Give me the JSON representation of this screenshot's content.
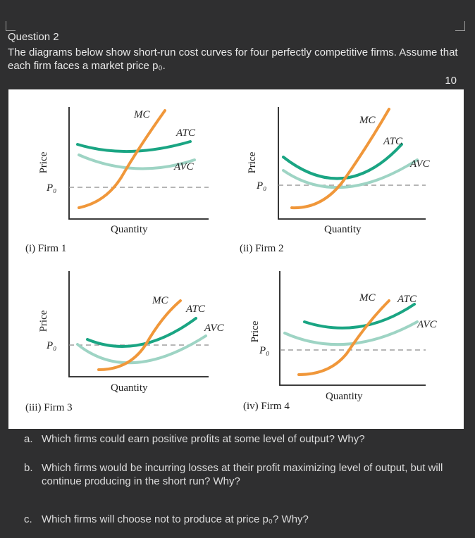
{
  "question": {
    "title": "Question 2",
    "text": "The diagrams below show short-run cost curves for four perfectly competitive firms. Assume that each firm faces a market price p₀.",
    "points": "10"
  },
  "figure": {
    "colors": {
      "mc": "#f0973a",
      "atc": "#1aa583",
      "avc": "#9ed4c4",
      "axis": "#222222",
      "price_line": "#8a8a8a"
    },
    "panels": [
      {
        "caption": "(i) Firm 1",
        "x_label": "Quantity",
        "y_label": "Price",
        "price_label": "P₀",
        "mc_label": "MC",
        "atc_label": "ATC",
        "avc_label": "AVC"
      },
      {
        "caption": "(ii) Firm 2",
        "x_label": "Quantity",
        "y_label": "Price",
        "price_label": "P₀",
        "mc_label": "MC",
        "atc_label": "ATC",
        "avc_label": "AVC"
      },
      {
        "caption": "(iii) Firm 3",
        "x_label": "Quantity",
        "y_label": "Price",
        "price_label": "P₀",
        "mc_label": "MC",
        "atc_label": "ATC",
        "avc_label": "AVC"
      },
      {
        "caption": "(iv) Firm 4",
        "x_label": "Quantity",
        "y_label": "Price",
        "price_label": "P₀",
        "mc_label": "MC",
        "atc_label": "ATC",
        "avc_label": "AVC"
      }
    ]
  },
  "sub_questions": [
    {
      "letter": "a.",
      "text": "Which firms could earn positive profits at some level of output? Why?"
    },
    {
      "letter": "b.",
      "text": "Which firms would be incurring losses at their profit maximizing level of output, but will continue producing in the short run? Why?"
    },
    {
      "letter": "c.",
      "text": "Which firms will choose not to produce at price p₀? Why?"
    }
  ]
}
